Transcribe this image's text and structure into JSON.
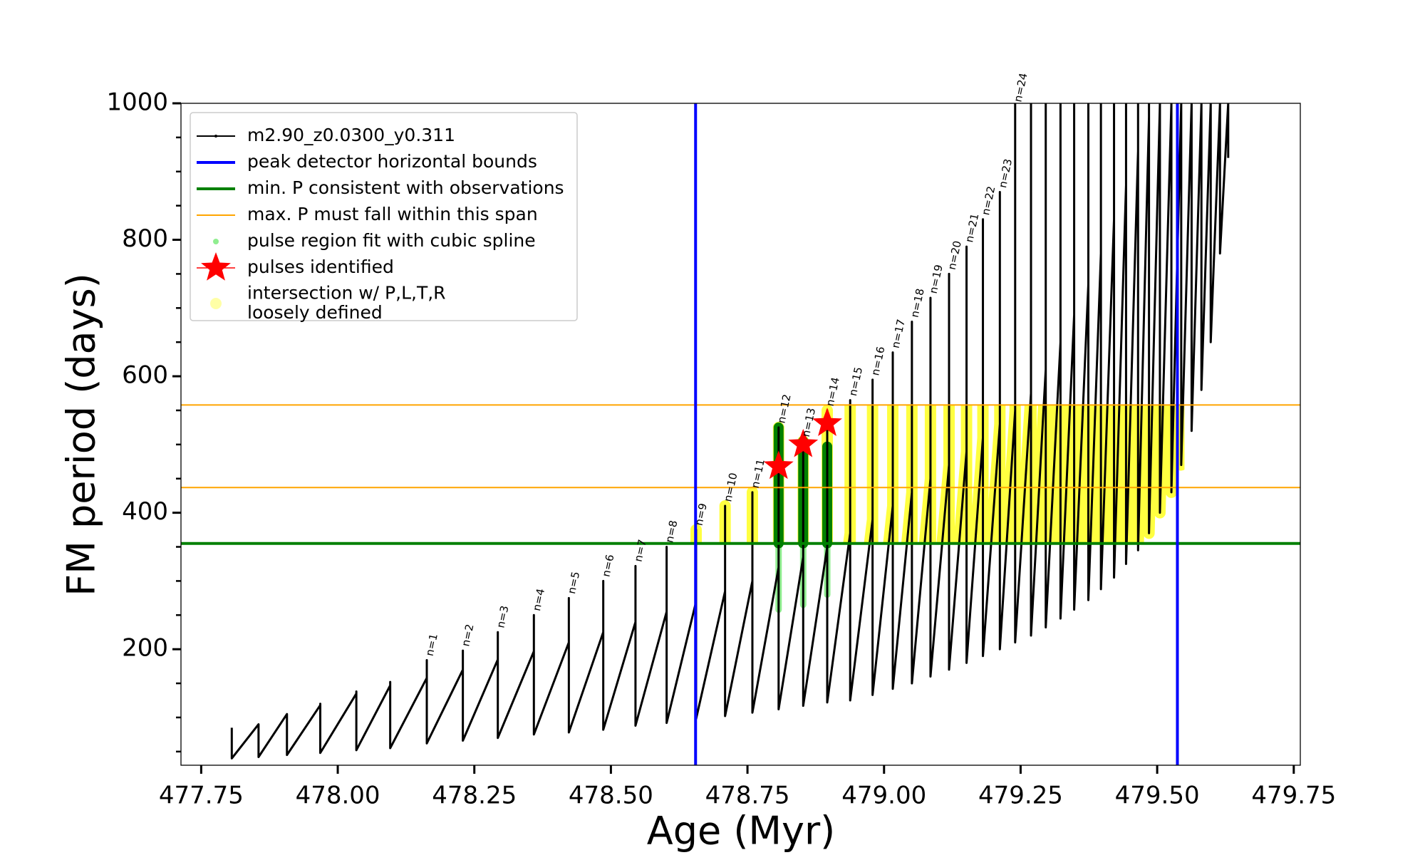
{
  "chart_data": {
    "type": "line",
    "xlabel": "Age (Myr)",
    "ylabel": "FM period (days)",
    "xlim": [
      477.713,
      479.762
    ],
    "ylim": [
      30,
      1000
    ],
    "xticks": [
      477.75,
      {
        "value": 478,
        "label": "478.00"
      },
      478.25,
      {
        "value": 478.5,
        "label": "478.50"
      },
      478.75,
      {
        "value": 479,
        "label": "479.00"
      },
      479.25,
      {
        "value": 479.5,
        "label": "479.50"
      },
      479.75
    ],
    "yticks": [
      200,
      400,
      600,
      800,
      1000
    ],
    "yminorticks": [
      50,
      100,
      150,
      250,
      300,
      350,
      450,
      500,
      550,
      650,
      700,
      750,
      850,
      900,
      950
    ],
    "legend": "upper left",
    "track": {
      "name": "m2.90_z0.0300_y0.311",
      "color": "#000000",
      "pulses": [
        {
          "x": 477.806,
          "top": 85,
          "min": 40
        },
        {
          "x": 477.855,
          "peak": 90,
          "top": 90,
          "min": 42
        },
        {
          "x": 477.907,
          "peak": 105,
          "top": 105,
          "min": 45
        },
        {
          "x": 477.968,
          "peak": 118,
          "top": 120,
          "min": 48
        },
        {
          "x": 478.034,
          "peak": 135,
          "top": 138,
          "min": 52
        },
        {
          "x": 478.096,
          "peak": 147,
          "top": 152,
          "min": 55
        },
        {
          "x": 478.163,
          "peak": 158,
          "top": 184,
          "min": 62,
          "label": "n=1"
        },
        {
          "x": 478.229,
          "peak": 170,
          "top": 198,
          "min": 66,
          "label": "n=2"
        },
        {
          "x": 478.293,
          "peak": 185,
          "top": 225,
          "min": 70,
          "label": "n=3"
        },
        {
          "x": 478.359,
          "peak": 197,
          "top": 250,
          "min": 75,
          "label": "n=4"
        },
        {
          "x": 478.423,
          "peak": 210,
          "top": 275,
          "min": 78,
          "label": "n=5"
        },
        {
          "x": 478.486,
          "peak": 225,
          "top": 300,
          "min": 82,
          "label": "n=6"
        },
        {
          "x": 478.545,
          "peak": 240,
          "top": 322,
          "min": 88,
          "label": "n=7"
        },
        {
          "x": 478.602,
          "peak": 255,
          "top": 350,
          "min": 92,
          "label": "n=8"
        },
        {
          "x": 478.656,
          "peak": 270,
          "top": 375,
          "min": 98,
          "label": "n=9"
        },
        {
          "x": 478.709,
          "peak": 285,
          "top": 410,
          "min": 102,
          "label": "n=10"
        },
        {
          "x": 478.759,
          "peak": 300,
          "top": 430,
          "min": 107,
          "label": "n=11"
        },
        {
          "x": 478.807,
          "peak": 320,
          "top": 525,
          "min": 112,
          "label": "n=12"
        },
        {
          "x": 478.852,
          "peak": 335,
          "top": 505,
          "min": 117,
          "label": "n=13"
        },
        {
          "x": 478.896,
          "peak": 350,
          "top": 550,
          "min": 122,
          "label": "n=14"
        },
        {
          "x": 478.938,
          "peak": 370,
          "top": 565,
          "min": 125,
          "label": "n=15"
        },
        {
          "x": 478.979,
          "peak": 390,
          "top": 595,
          "min": 133,
          "label": "n=16"
        },
        {
          "x": 479.016,
          "peak": 410,
          "top": 635,
          "min": 142,
          "label": "n=17"
        },
        {
          "x": 479.051,
          "peak": 430,
          "top": 680,
          "min": 150,
          "label": "n=18"
        },
        {
          "x": 479.085,
          "peak": 450,
          "top": 715,
          "min": 160,
          "label": "n=19"
        },
        {
          "x": 479.119,
          "peak": 470,
          "top": 750,
          "min": 170,
          "label": "n=20"
        },
        {
          "x": 479.151,
          "peak": 490,
          "top": 790,
          "min": 180,
          "label": "n=21"
        },
        {
          "x": 479.181,
          "peak": 510,
          "top": 830,
          "min": 190,
          "label": "n=22"
        },
        {
          "x": 479.212,
          "peak": 530,
          "top": 870,
          "min": 200,
          "label": "n=23"
        },
        {
          "x": 479.24,
          "peak": 550,
          "top": 1000,
          "min": 210,
          "label": "n=24"
        },
        {
          "x": 479.269,
          "peak": 575,
          "top": 1000,
          "min": 220
        },
        {
          "x": 479.296,
          "peak": 610,
          "top": 1000,
          "min": 232
        },
        {
          "x": 479.323,
          "peak": 650,
          "top": 1000,
          "min": 245
        },
        {
          "x": 479.348,
          "peak": 690,
          "top": 1000,
          "min": 258
        },
        {
          "x": 479.374,
          "peak": 735,
          "top": 1000,
          "min": 272
        },
        {
          "x": 479.397,
          "peak": 780,
          "top": 1000,
          "min": 288
        },
        {
          "x": 479.421,
          "peak": 830,
          "top": 1000,
          "min": 305
        },
        {
          "x": 479.443,
          "peak": 880,
          "top": 1000,
          "min": 325
        },
        {
          "x": 479.465,
          "peak": 930,
          "top": 1000,
          "min": 345
        },
        {
          "x": 479.485,
          "peak": 980,
          "top": 1000,
          "min": 370
        },
        {
          "x": 479.505,
          "peak": 1000,
          "top": 1000,
          "min": 400
        },
        {
          "x": 479.526,
          "peak": 1000,
          "top": 1000,
          "min": 430
        },
        {
          "x": 479.544,
          "peak": 1000,
          "top": 1000,
          "min": 470
        },
        {
          "x": 479.563,
          "peak": 1000,
          "top": 1000,
          "min": 520
        },
        {
          "x": 479.581,
          "peak": 1000,
          "top": 1000,
          "min": 580
        },
        {
          "x": 479.598,
          "peak": 1000,
          "top": 1000,
          "min": 650
        },
        {
          "x": 479.615,
          "peak": 1000,
          "top": 1000,
          "min": 780
        },
        {
          "x": 479.63,
          "peak": 1000,
          "top": 1000,
          "min": 920
        }
      ]
    },
    "vlines": {
      "name": "peak detector horizontal bounds",
      "color": "#0000ff",
      "values": [
        478.655,
        479.537
      ]
    },
    "min_p": {
      "name": "min. P consistent with observations",
      "color": "#008000",
      "value": 355
    },
    "max_p": {
      "name": "max. P must fall within this span",
      "color": "#ffa500",
      "values": [
        437,
        558
      ]
    },
    "pulse_regions": {
      "name": "pulse region fit with cubic spline",
      "color": "#90ee90",
      "dark_color": "#008000",
      "x": [
        478.807,
        478.852,
        478.896
      ],
      "low": [
        258,
        265,
        280
      ],
      "high": [
        525,
        505,
        497
      ]
    },
    "stars": {
      "name": "pulses identified",
      "color": "#ff0000",
      "x": [
        478.807,
        478.852,
        478.896
      ],
      "y": [
        468,
        500,
        531
      ]
    },
    "loose": {
      "name": "intersection w/ P,L,T,R\nloosely defined",
      "color": "#ffff00",
      "xlim": [
        478.64,
        479.55
      ]
    }
  }
}
